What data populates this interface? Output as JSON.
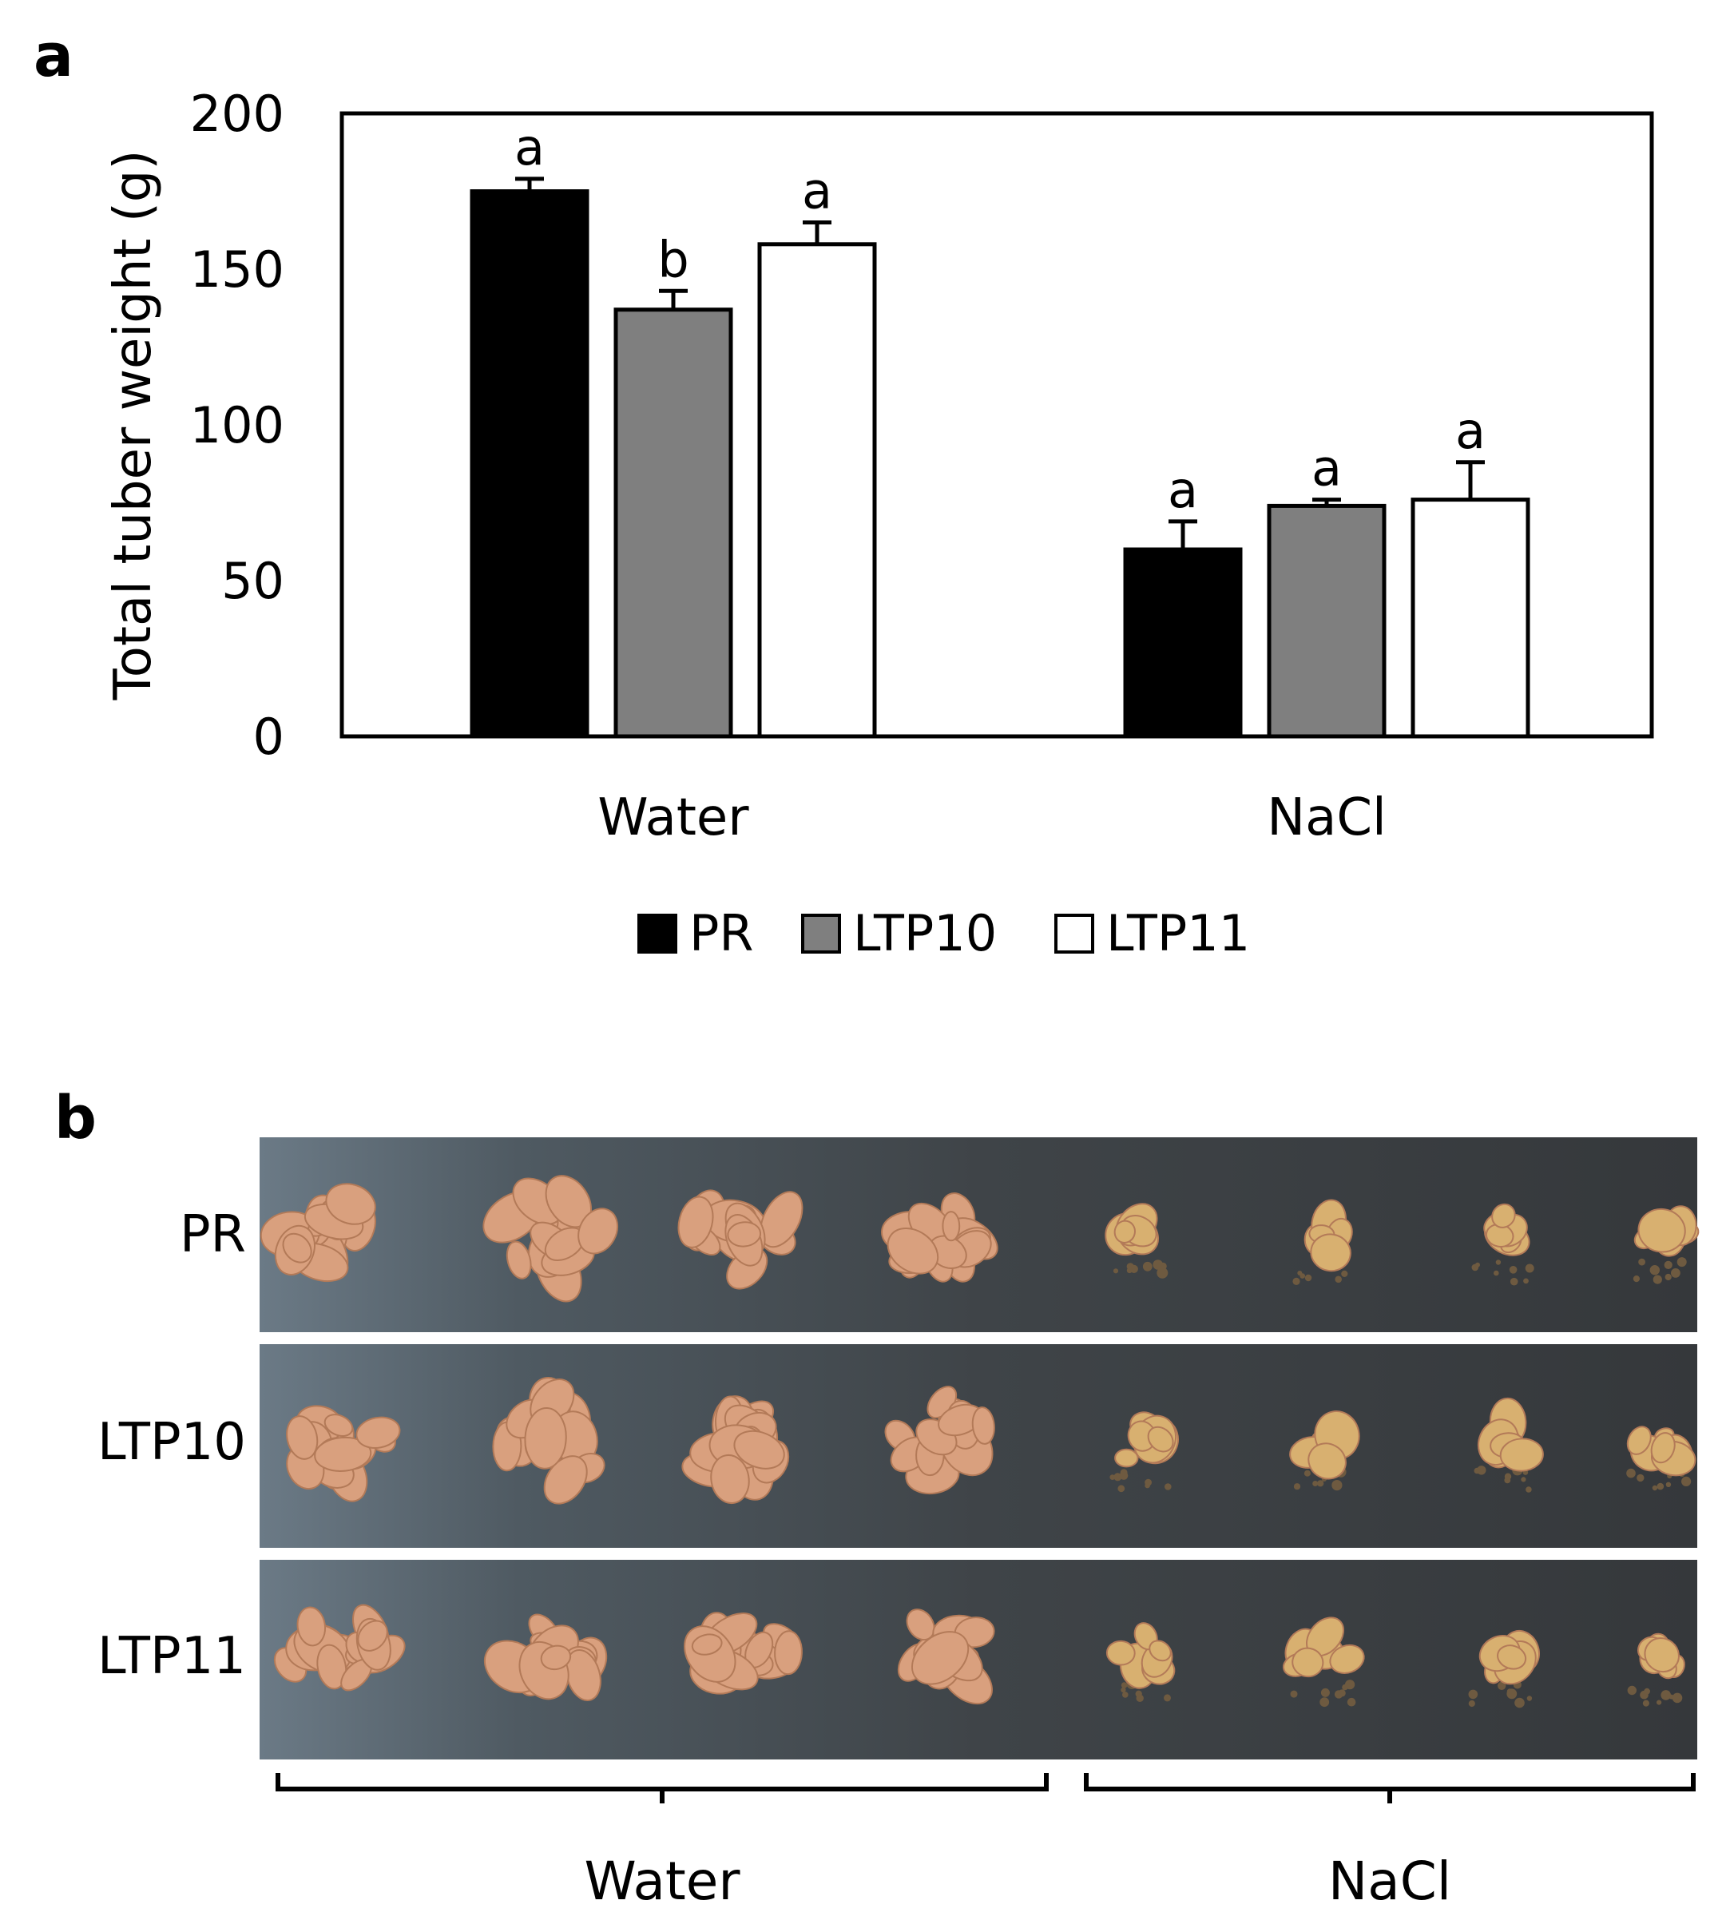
{
  "panel_a": {
    "label": "a"
  },
  "panel_b": {
    "label": "b",
    "row_labels": [
      "PR",
      "LTP10",
      "LTP11"
    ],
    "groups": [
      "Water",
      "NaCl"
    ],
    "colors": {
      "background": "#3f4448",
      "background_light": "#6b7a86",
      "tuber_water": "#d9a07e",
      "tuber_nacl": "#d8b070",
      "tuber_edge": "#b37a58",
      "debris": "#6e5a40"
    }
  },
  "chart_data": {
    "type": "bar",
    "title": "",
    "xlabel": "",
    "ylabel": "Total tuber weight (g)",
    "ylim": [
      0,
      200
    ],
    "yticks": [
      0,
      50,
      100,
      150,
      200
    ],
    "categories": [
      "Water",
      "NaCl"
    ],
    "legend_position": "bottom",
    "series": [
      {
        "name": "PR",
        "color": "#000000",
        "values": [
          175,
          60
        ],
        "errors": [
          4,
          9
        ],
        "letters": [
          "a",
          "a"
        ]
      },
      {
        "name": "LTP10",
        "color": "#7f7f7f",
        "values": [
          137,
          74
        ],
        "errors": [
          6,
          2
        ],
        "letters": [
          "b",
          "a"
        ]
      },
      {
        "name": "LTP11",
        "color": "#ffffff",
        "values": [
          158,
          76
        ],
        "errors": [
          7,
          12
        ],
        "letters": [
          "a",
          "a"
        ]
      }
    ]
  }
}
